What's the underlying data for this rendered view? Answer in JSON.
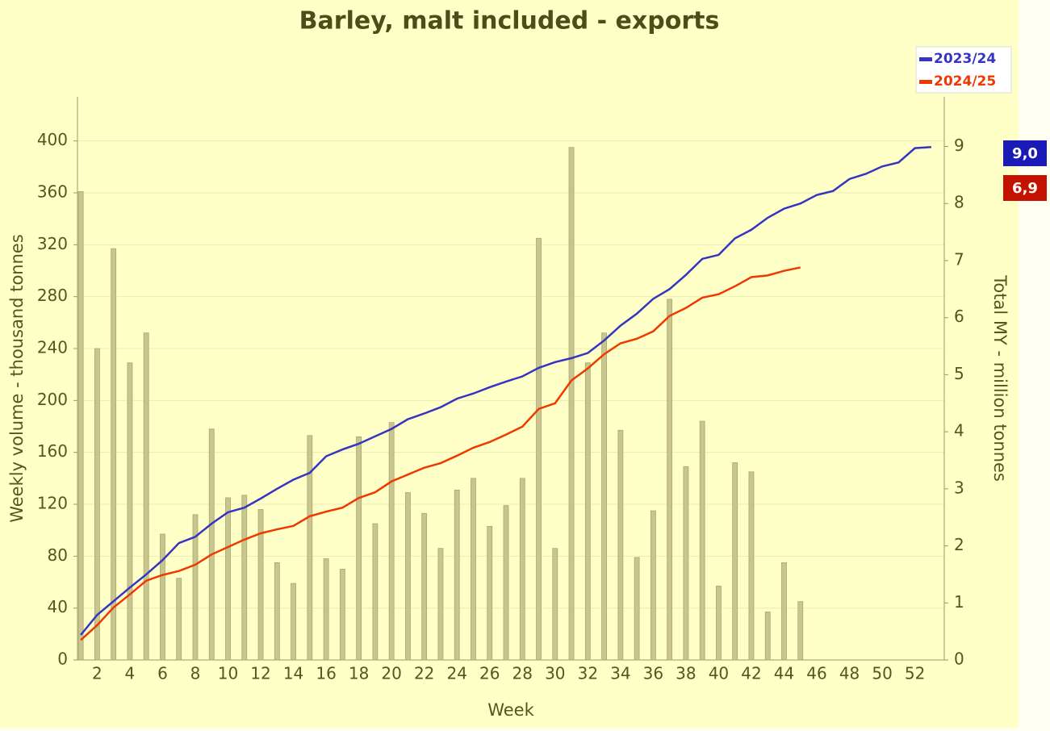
{
  "chart_data": {
    "type": "bar",
    "title": "Barley, malt included - exports",
    "x_label": "Week",
    "y_label": "Weekly volume - thousand tonnes",
    "y2_label": "Total MY - million tonnes",
    "categories": [
      null,
      "2",
      null,
      "4",
      null,
      "6",
      null,
      "8",
      null,
      "10",
      null,
      "12",
      null,
      "14",
      null,
      "16",
      null,
      "18",
      null,
      "20",
      null,
      "22",
      null,
      "24",
      null,
      "26",
      null,
      "28",
      null,
      "30",
      null,
      "32",
      null,
      "34",
      null,
      "36",
      null,
      "38",
      null,
      "40",
      null,
      "42",
      null,
      "44",
      null,
      "46",
      null,
      "48",
      null,
      "50",
      null,
      "52",
      null
    ],
    "series": [
      {
        "type": "bar",
        "color": "#c9c58e",
        "values": [
          361,
          240,
          317,
          229,
          252,
          97,
          63,
          112,
          178,
          125,
          127,
          116,
          75,
          59,
          173,
          78,
          70,
          172,
          105,
          183,
          129,
          113,
          86,
          131,
          140,
          103,
          119,
          140,
          325,
          86,
          395,
          229,
          252,
          177,
          79,
          115,
          278,
          149,
          184,
          57,
          152,
          145,
          37,
          75,
          45,
          0,
          0,
          0,
          0,
          0,
          0,
          0,
          0
        ]
      },
      {
        "type": "line",
        "axis": "y2",
        "name": "2023/24",
        "color": "#3535c0",
        "values": [
          0.44,
          0.79,
          1.03,
          1.27,
          1.5,
          1.75,
          2.05,
          2.16,
          2.39,
          2.59,
          2.67,
          2.83,
          3.0,
          3.16,
          3.28,
          3.57,
          3.69,
          3.79,
          3.92,
          4.05,
          4.22,
          4.32,
          4.43,
          4.58,
          4.67,
          4.78,
          4.88,
          4.97,
          5.12,
          5.22,
          5.29,
          5.38,
          5.6,
          5.86,
          6.07,
          6.33,
          6.5,
          6.75,
          7.03,
          7.1,
          7.39,
          7.54,
          7.75,
          7.91,
          8.0,
          8.15,
          8.22,
          8.43,
          8.52,
          8.65,
          8.72,
          8.97,
          8.99
        ]
      },
      {
        "type": "line",
        "axis": "y2",
        "name": "2024/25",
        "color": "#ee3a00",
        "values": [
          0.35,
          0.61,
          0.92,
          1.15,
          1.39,
          1.49,
          1.56,
          1.67,
          1.85,
          1.98,
          2.11,
          2.22,
          2.29,
          2.35,
          2.52,
          2.6,
          2.67,
          2.84,
          2.94,
          3.13,
          3.25,
          3.37,
          3.45,
          3.58,
          3.72,
          3.82,
          3.95,
          4.09,
          4.4,
          4.5,
          4.9,
          5.11,
          5.36,
          5.55,
          5.63,
          5.76,
          6.03,
          6.17,
          6.35,
          6.41,
          6.55,
          6.71,
          6.74,
          6.82,
          6.88,
          null,
          null,
          null,
          null,
          null,
          null,
          null,
          null
        ]
      }
    ],
    "ylim": [
      0,
      434
    ],
    "yticks": [
      0,
      40,
      80,
      120,
      160,
      200,
      240,
      280,
      320,
      360,
      400
    ],
    "y2lim": [
      0,
      9.87
    ],
    "y2ticks": [
      0,
      1,
      2,
      3,
      4,
      5,
      6,
      7,
      8,
      9
    ],
    "grid": true,
    "legend": "top-right",
    "annotations": [
      {
        "text": "9,0",
        "color": "#1a1ab8"
      },
      {
        "text": "6,9",
        "color": "#c41200"
      }
    ]
  }
}
